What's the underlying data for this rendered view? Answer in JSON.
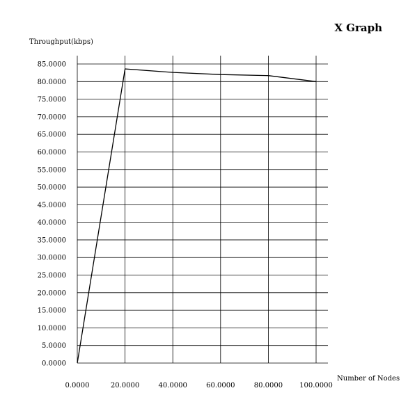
{
  "chart_data": {
    "type": "line",
    "title": "X Graph",
    "xlabel": "Number of Nodes",
    "ylabel": "Throughput(kbps)",
    "xlim": [
      0,
      100
    ],
    "ylim": [
      0,
      85
    ],
    "grid": true,
    "x_ticks": [
      0,
      20,
      40,
      60,
      80,
      100
    ],
    "x_tick_labels": [
      "0.0000",
      "20.0000",
      "40.0000",
      "60.0000",
      "80.0000",
      "100.0000"
    ],
    "y_ticks": [
      0,
      5,
      10,
      15,
      20,
      25,
      30,
      35,
      40,
      45,
      50,
      55,
      60,
      65,
      70,
      75,
      80,
      85
    ],
    "y_tick_labels": [
      "0.0000",
      "5.0000",
      "10.0000",
      "15.0000",
      "20.0000",
      "25.0000",
      "30.0000",
      "35.0000",
      "40.0000",
      "45.0000",
      "50.0000",
      "55.0000",
      "60.0000",
      "65.0000",
      "70.0000",
      "75.0000",
      "80.0000",
      "85.0000"
    ],
    "series": [
      {
        "x": [
          0,
          20,
          40,
          60,
          80,
          100
        ],
        "y": [
          0,
          83.6,
          82.6,
          82.0,
          81.7,
          80.0
        ],
        "color": "#000000"
      }
    ]
  }
}
